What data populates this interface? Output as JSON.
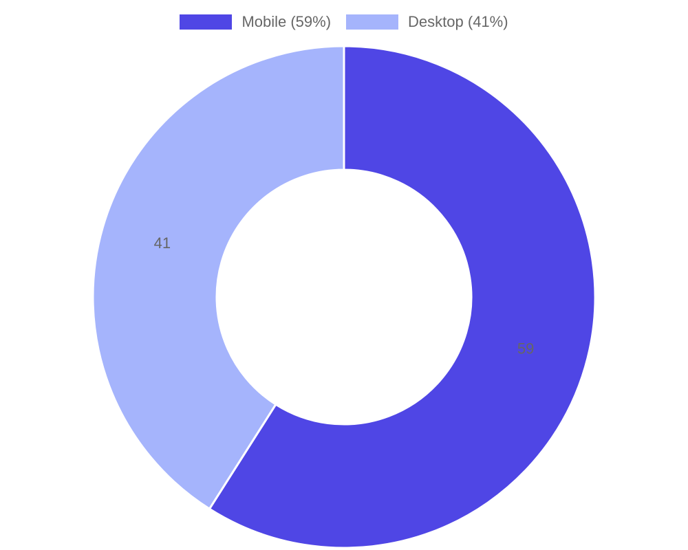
{
  "chart_data": {
    "type": "doughnut",
    "categories": [
      "Mobile",
      "Desktop"
    ],
    "values": [
      59,
      41
    ],
    "legend": [
      "Mobile (59%)",
      "Desktop (41%)"
    ],
    "colors": [
      "#4f46e5",
      "#a5b4fc"
    ],
    "data_labels": [
      "59",
      "41"
    ],
    "legend_position": "top"
  }
}
